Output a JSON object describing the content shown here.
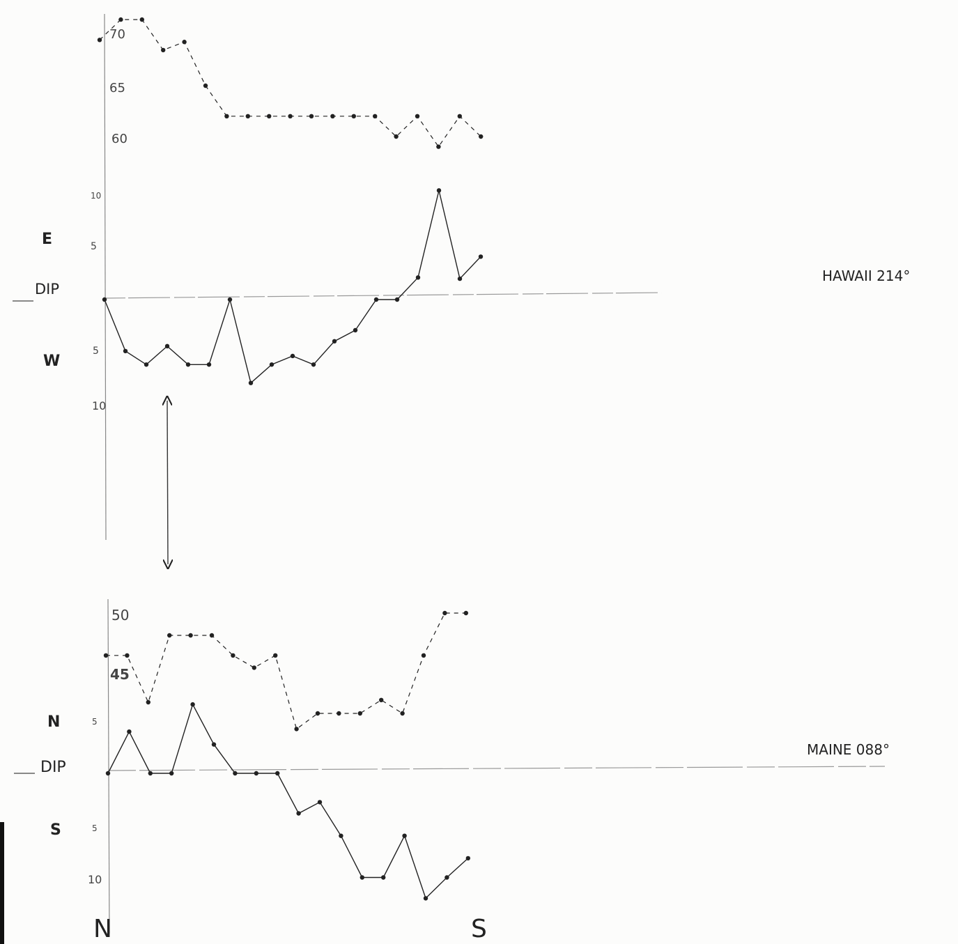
{
  "chart_data": [
    {
      "type": "line",
      "series": [
        {
          "style": "dashed",
          "x": [
            0,
            1,
            2,
            3,
            4,
            5,
            6,
            7,
            8,
            9,
            10,
            11,
            12,
            13,
            14,
            15,
            16,
            17,
            18
          ],
          "values": [
            69.5,
            71.5,
            71.5,
            68.5,
            69.3,
            65.0,
            62.0,
            62.0,
            62.0,
            62.0,
            62.0,
            62.0,
            62.0,
            62.0,
            60.0,
            62.0,
            59.0,
            62.0,
            60.0
          ]
        },
        {
          "style": "solid",
          "x": [
            0,
            1,
            2,
            3,
            4,
            5,
            6,
            7,
            8,
            9,
            10,
            11,
            12,
            13,
            14,
            15,
            16,
            17,
            18
          ],
          "values": [
            0,
            -4.2,
            -5.3,
            -3.8,
            -5.3,
            -5.3,
            0,
            -6.8,
            -5.3,
            -4.6,
            -5.3,
            -3.4,
            -2.5,
            0,
            0,
            1.8,
            8.9,
            1.7,
            3.5
          ]
        }
      ],
      "ticks_top": [
        "70",
        "65",
        "60"
      ],
      "ticks_bottom": [
        "10",
        "5",
        "5",
        "10"
      ],
      "side_labels": {
        "upper": "E",
        "middle": "DIP",
        "lower": "W"
      },
      "station_label": "HAWAII 214°"
    },
    {
      "type": "line",
      "series": [
        {
          "style": "dashed",
          "x": [
            0,
            1,
            2,
            3,
            4,
            5,
            6,
            7,
            8,
            9,
            10,
            11,
            12,
            13,
            14,
            15,
            16,
            17
          ],
          "values": [
            46.2,
            46.2,
            42.0,
            48.0,
            48.0,
            48.0,
            46.2,
            45.1,
            46.2,
            39.6,
            41.0,
            41.0,
            41.0,
            42.2,
            41.0,
            46.2,
            50.0,
            50.0
          ]
        },
        {
          "style": "solid",
          "x": [
            0,
            1,
            2,
            3,
            4,
            5,
            6,
            7,
            8,
            9,
            10,
            11,
            12,
            13,
            14,
            15,
            16,
            17
          ],
          "values": [
            0,
            2.6,
            0,
            0,
            4.3,
            1.8,
            0,
            0,
            0,
            -2.5,
            -1.8,
            -3.9,
            -6.5,
            -6.5,
            -3.9,
            -7.8,
            -6.5,
            -5.3
          ]
        }
      ],
      "ticks_top": [
        "50",
        "45"
      ],
      "ticks_bottom": [
        "5",
        "5",
        "10"
      ],
      "side_labels": {
        "upper": "N",
        "middle": "DIP",
        "lower": "S"
      },
      "station_label": "MAINE 088°"
    }
  ],
  "x_axis_labels": {
    "left": "N",
    "right": "S"
  },
  "colors": {
    "ink": "#222222",
    "paper": "#fcfcfb"
  }
}
